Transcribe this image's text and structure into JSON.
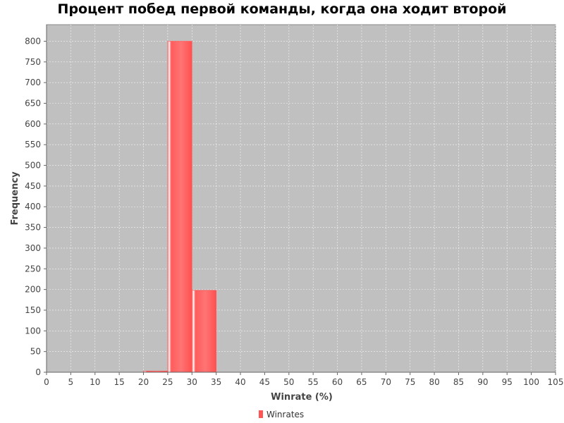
{
  "chart_data": {
    "type": "bar",
    "title": "Процент побед первой команды, когда она ходит второй",
    "xlabel": "Winrate (%)",
    "ylabel": "Frequency",
    "xlim": [
      0,
      105
    ],
    "ylim": [
      0,
      840
    ],
    "x_ticks": [
      0,
      5,
      10,
      15,
      20,
      25,
      30,
      35,
      40,
      45,
      50,
      55,
      60,
      65,
      70,
      75,
      80,
      85,
      90,
      95,
      100,
      105
    ],
    "y_ticks": [
      0,
      50,
      100,
      150,
      200,
      250,
      300,
      350,
      400,
      450,
      500,
      550,
      600,
      650,
      700,
      750,
      800
    ],
    "bins": [
      {
        "x0": 20,
        "x1": 25,
        "value": 3
      },
      {
        "x0": 25,
        "x1": 30,
        "value": 800
      },
      {
        "x0": 30,
        "x1": 35,
        "value": 198
      }
    ],
    "series": [
      {
        "name": "Winrates",
        "color": "#ff5555"
      }
    ],
    "grid": true,
    "legend_position": "bottom-center",
    "colors": {
      "plot_background": "#c0c0c0",
      "bar": "#ff5555",
      "gridline": "#ffffff"
    }
  }
}
